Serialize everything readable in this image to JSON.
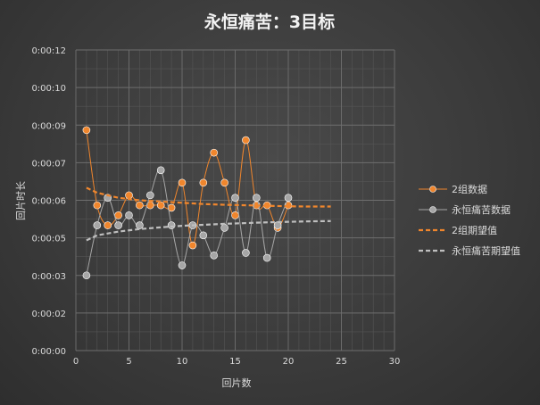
{
  "chart_data": {
    "type": "scatter",
    "title": "永恒痛苦：3目标",
    "xlabel": "回片数",
    "ylabel": "回片时长",
    "xlim": [
      0,
      30
    ],
    "ylim": [
      0,
      12
    ],
    "x_ticks": [
      0,
      5,
      10,
      15,
      20,
      25,
      30
    ],
    "y_ticks": [
      0,
      1.5,
      3,
      4.5,
      6,
      7.5,
      9,
      10.5,
      12
    ],
    "y_tick_labels": [
      "0:00:00",
      "0:00:02",
      "0:00:03",
      "0:00:05",
      "0:00:06",
      "0:00:07",
      "0:00:09",
      "0:00:10",
      "0:00:12"
    ],
    "grid": true,
    "legend_position": "right",
    "series": [
      {
        "name": "2组数据",
        "style": "line-markers",
        "color": "#f0862d",
        "x": [
          1,
          2,
          3,
          4,
          5,
          6,
          7,
          8,
          9,
          10,
          11,
          12,
          13,
          14,
          15,
          16,
          17,
          18,
          19,
          20
        ],
        "y": [
          8.8,
          5.8,
          5.0,
          5.4,
          6.2,
          5.8,
          5.8,
          5.8,
          5.7,
          6.7,
          4.2,
          6.7,
          7.9,
          6.7,
          5.4,
          8.4,
          5.8,
          5.8,
          4.9,
          5.8
        ]
      },
      {
        "name": "永恒痛苦数据",
        "style": "line-markers",
        "color": "#a6a6a6",
        "x": [
          1,
          2,
          3,
          4,
          5,
          6,
          7,
          8,
          9,
          10,
          11,
          12,
          13,
          14,
          15,
          16,
          17,
          18,
          19,
          20
        ],
        "y": [
          3.0,
          5.0,
          6.1,
          5.0,
          5.4,
          5.0,
          6.2,
          7.2,
          5.0,
          3.4,
          5.0,
          4.6,
          3.8,
          4.9,
          6.1,
          3.9,
          6.1,
          3.7,
          5.0,
          6.1
        ]
      },
      {
        "name": "2组期望值",
        "style": "dashed",
        "color": "#f0862d",
        "x": [
          1,
          2,
          4,
          6,
          8,
          10,
          12,
          14,
          16,
          18,
          20,
          22,
          24
        ],
        "y": [
          6.5,
          6.3,
          6.1,
          6.0,
          5.95,
          5.9,
          5.85,
          5.82,
          5.8,
          5.78,
          5.76,
          5.75,
          5.75
        ]
      },
      {
        "name": "永恒痛苦期望值",
        "style": "dashed",
        "color": "#bfbfbf",
        "x": [
          1,
          2,
          4,
          6,
          8,
          10,
          12,
          14,
          16,
          18,
          20,
          22,
          24
        ],
        "y": [
          4.4,
          4.6,
          4.75,
          4.85,
          4.92,
          4.98,
          5.02,
          5.06,
          5.09,
          5.12,
          5.14,
          5.16,
          5.17
        ]
      }
    ]
  }
}
